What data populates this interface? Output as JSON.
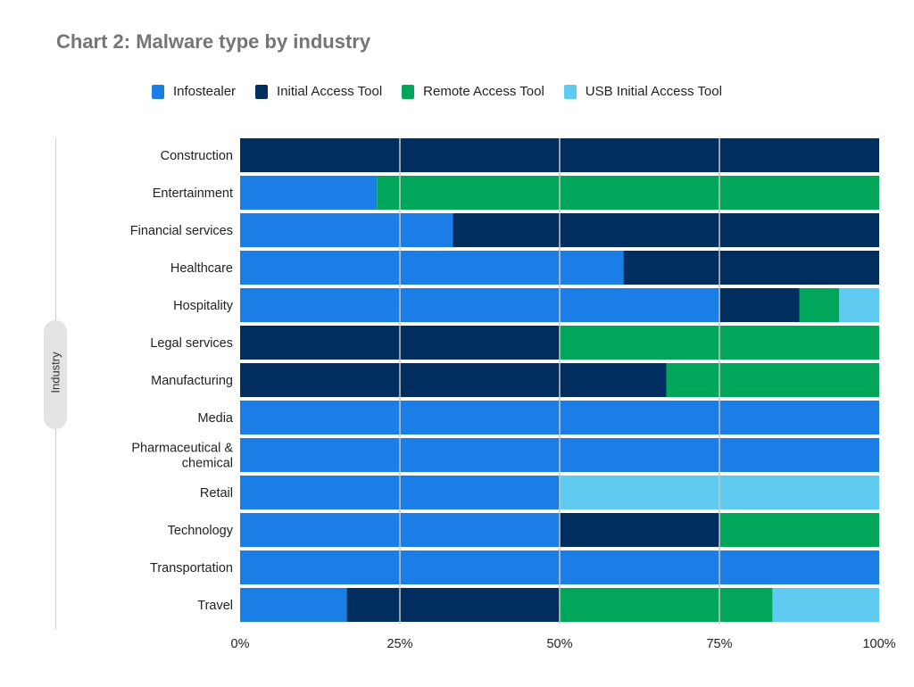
{
  "chart_data": {
    "type": "bar",
    "orientation": "horizontal",
    "stacked": "percent",
    "title": "Chart 2: Malware type by industry",
    "ylabel": "Industry",
    "xlabel": "",
    "xlim": [
      0,
      100
    ],
    "x_ticks": [
      "0%",
      "25%",
      "50%",
      "75%",
      "100%"
    ],
    "grid": true,
    "legend_position": "top",
    "categories": [
      "Construction",
      "Entertainment",
      "Financial services",
      "Healthcare",
      "Hospitality",
      "Legal services",
      "Manufacturing",
      "Media",
      "Pharmaceutical & chemical",
      "Retail",
      "Technology",
      "Transportation",
      "Travel"
    ],
    "series": [
      {
        "name": "Infostealer",
        "color": "#1a7ee6",
        "values": [
          0,
          21.4,
          33.3,
          60,
          75,
          0,
          0,
          100,
          100,
          50,
          50,
          100,
          16.7
        ]
      },
      {
        "name": "Initial Access Tool",
        "color": "#002f5f",
        "values": [
          100,
          0,
          66.7,
          40,
          12.5,
          50,
          66.7,
          0,
          0,
          0,
          25,
          0,
          33.3
        ]
      },
      {
        "name": "Remote Access Tool",
        "color": "#00a65a",
        "values": [
          0,
          78.6,
          0,
          0,
          6.25,
          50,
          33.3,
          0,
          0,
          0,
          25,
          0,
          33.3
        ]
      },
      {
        "name": "USB Initial Access Tool",
        "color": "#5fcaf0",
        "values": [
          0,
          0,
          0,
          0,
          6.25,
          0,
          0,
          0,
          0,
          50,
          0,
          0,
          16.7
        ]
      }
    ]
  }
}
